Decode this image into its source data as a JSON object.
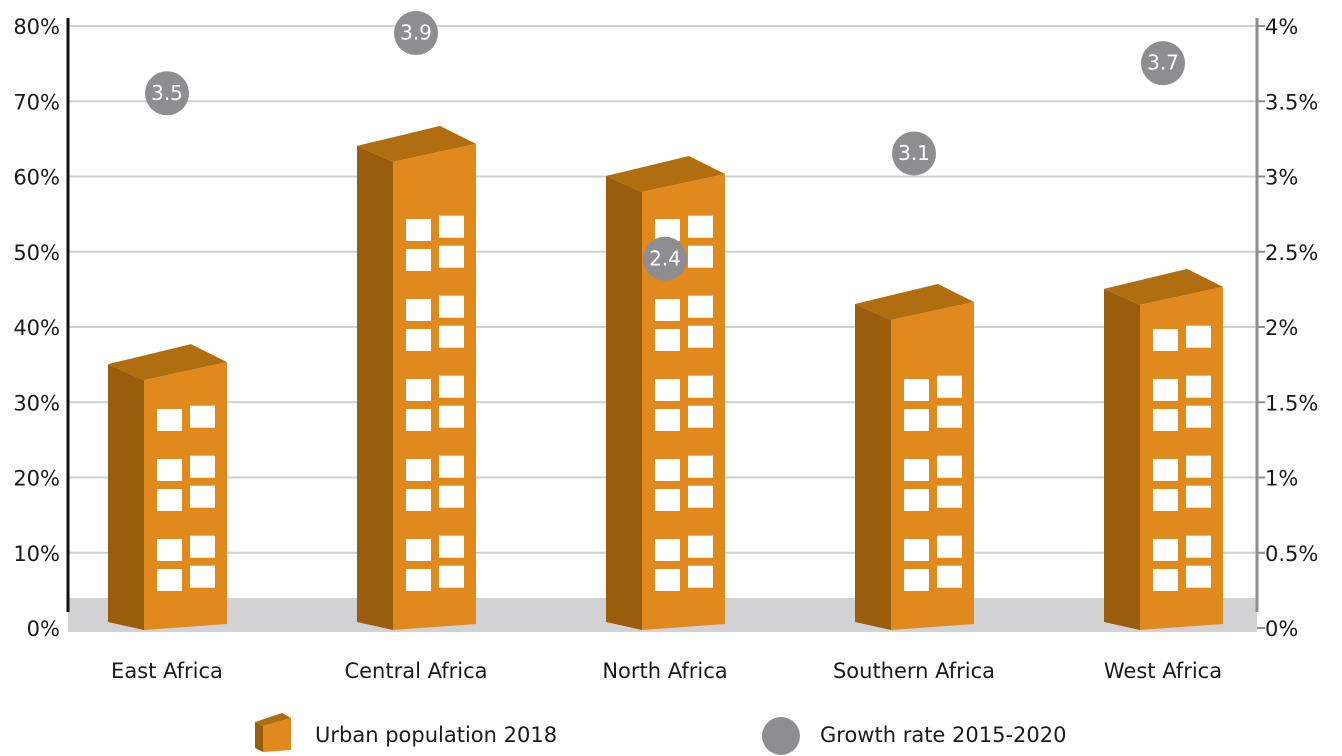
{
  "chart_data": {
    "type": "bar",
    "categories": [
      "East Africa",
      "Central Africa",
      "North Africa",
      "Southern Africa",
      "West Africa"
    ],
    "series": [
      {
        "name": "Urban population 2018",
        "color": "#e08a1e",
        "values": [
          34,
          63,
          59,
          42,
          44
        ]
      },
      {
        "name": "Growth rate 2015-2020",
        "color": "#8e8e91",
        "values": [
          3.5,
          3.9,
          2.4,
          3.1,
          3.7
        ],
        "axis": "y2"
      }
    ],
    "ylim": [
      0,
      80
    ],
    "yticks": [
      {
        "value": 0,
        "label": "0%"
      },
      {
        "value": 10,
        "label": "10%"
      },
      {
        "value": 20,
        "label": "20%"
      },
      {
        "value": 30,
        "label": "30%"
      },
      {
        "value": 40,
        "label": "40%"
      },
      {
        "value": 50,
        "label": "50%"
      },
      {
        "value": 60,
        "label": "60%"
      },
      {
        "value": 70,
        "label": "70%"
      },
      {
        "value": 80,
        "label": "80%"
      }
    ],
    "y2lim": [
      0,
      4
    ],
    "y2ticks": [
      {
        "value": 0,
        "label": "0%"
      },
      {
        "value": 0.5,
        "label": "0.5%"
      },
      {
        "value": 1,
        "label": "1%"
      },
      {
        "value": 1.5,
        "label": "1.5%"
      },
      {
        "value": 2,
        "label": "2%"
      },
      {
        "value": 2.5,
        "label": "2.5%"
      },
      {
        "value": 3,
        "label": "3%"
      },
      {
        "value": 3.5,
        "label": "3.5%"
      },
      {
        "value": 4,
        "label": "4%"
      }
    ],
    "grid": true
  }
}
